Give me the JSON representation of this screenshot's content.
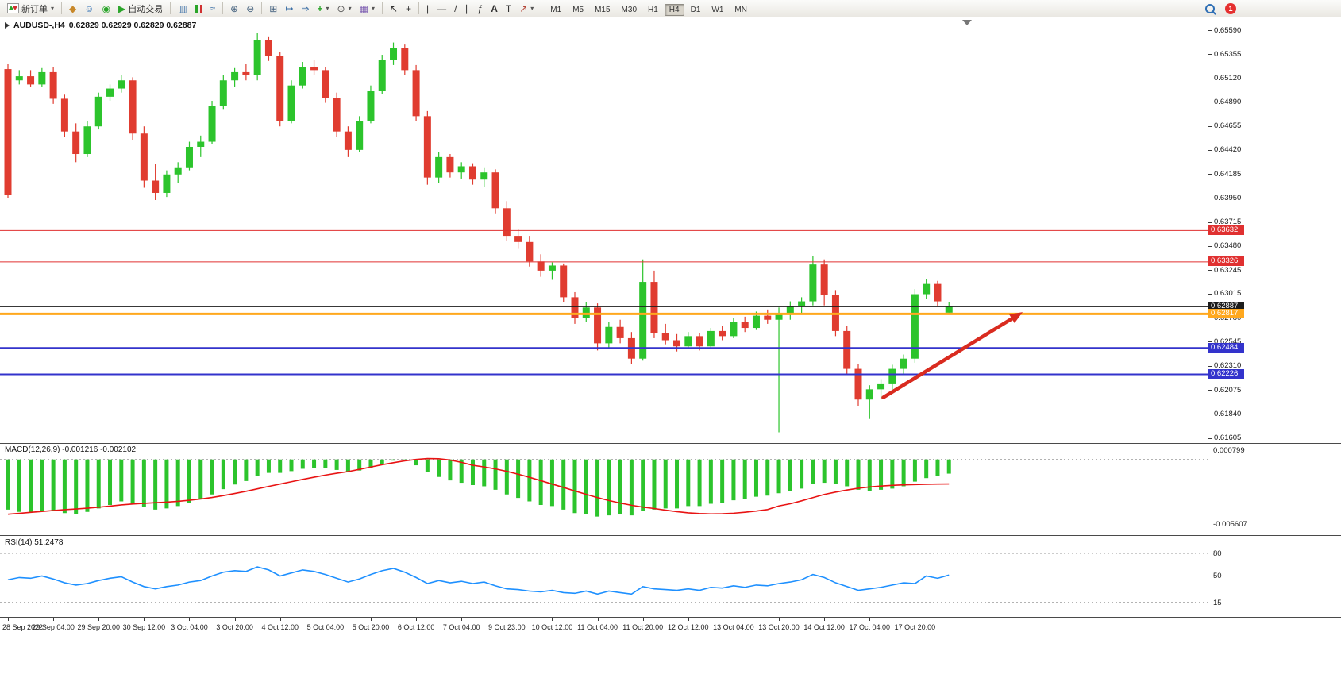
{
  "toolbar": {
    "new_order_label": "新订单",
    "autotrading_label": "自动交易",
    "timeframes": [
      "M1",
      "M5",
      "M15",
      "M30",
      "H1",
      "H4",
      "D1",
      "W1",
      "MN"
    ],
    "active_timeframe": "H4",
    "notification_count": "1"
  },
  "chart": {
    "symbol_title": "AUDUSD-,H4",
    "ohlc_text": "0.62829 0.62929 0.62829 0.62887",
    "price_axis": [
      "0.65590",
      "0.65355",
      "0.65120",
      "0.64890",
      "0.64655",
      "0.64420",
      "0.64185",
      "0.63950",
      "0.63715",
      "0.63480",
      "0.63245",
      "0.63015",
      "0.62780",
      "0.62545",
      "0.62310",
      "0.62075",
      "0.61840",
      "0.61605"
    ],
    "time_axis": [
      "28 Sep 2022",
      "29 Sep 04:00",
      "29 Sep 20:00",
      "30 Sep 12:00",
      "3 Oct 04:00",
      "3 Oct 20:00",
      "4 Oct 12:00",
      "5 Oct 04:00",
      "5 Oct 20:00",
      "6 Oct 12:00",
      "7 Oct 04:00",
      "9 Oct 23:00",
      "10 Oct 12:00",
      "11 Oct 04:00",
      "11 Oct 20:00",
      "12 Oct 12:00",
      "13 Oct 04:00",
      "13 Oct 20:00",
      "14 Oct 12:00",
      "17 Oct 04:00",
      "17 Oct 20:00"
    ],
    "hlines": [
      {
        "label": "0.63632",
        "value": 0.63632,
        "color": "#e03030",
        "width": 1
      },
      {
        "label": "0.63326",
        "value": 0.63326,
        "color": "#e03030",
        "width": 1
      },
      {
        "label": "0.62887",
        "value": 0.62887,
        "color": "#1c1c1c",
        "width": 1
      },
      {
        "label": "0.62817",
        "value": 0.62817,
        "color": "#ffa81e",
        "width": 3
      },
      {
        "label": "0.62484",
        "value": 0.62484,
        "color": "#3333cc",
        "width": 2
      },
      {
        "label": "0.62226",
        "value": 0.62226,
        "color": "#3333cc",
        "width": 2
      }
    ]
  },
  "colors": {
    "up": "#2cc42c",
    "down": "#e03c30",
    "macd_hist": "#2cc42c",
    "macd_signal": "#e81313",
    "rsi_line": "#1E90FF",
    "level": "#9a9a9a",
    "arrow": "#d92b1f",
    "scale_text": "#1a1a1a"
  },
  "chart_data": {
    "type": "candlestick",
    "symbol": "AUDUSD-",
    "period": "H4",
    "current_bar": {
      "open": 0.62829,
      "high": 0.62929,
      "low": 0.62829,
      "close": 0.62887
    },
    "price_range": {
      "top": 0.65715,
      "bottom": 0.61555
    },
    "candles": [
      [
        0.6521,
        0.6526,
        0.6395,
        0.6398
      ],
      [
        0.651,
        0.652,
        0.6506,
        0.6514
      ],
      [
        0.6514,
        0.652,
        0.6504,
        0.6506
      ],
      [
        0.6506,
        0.6522,
        0.6504,
        0.6518
      ],
      [
        0.6518,
        0.6523,
        0.6487,
        0.6492
      ],
      [
        0.6492,
        0.6496,
        0.6455,
        0.646
      ],
      [
        0.646,
        0.6468,
        0.643,
        0.6438
      ],
      [
        0.6438,
        0.647,
        0.6435,
        0.6465
      ],
      [
        0.6465,
        0.6498,
        0.6462,
        0.6494
      ],
      [
        0.6494,
        0.6506,
        0.649,
        0.6502
      ],
      [
        0.6502,
        0.6515,
        0.6498,
        0.651
      ],
      [
        0.651,
        0.6513,
        0.6452,
        0.6458
      ],
      [
        0.6458,
        0.6465,
        0.6405,
        0.6412
      ],
      [
        0.6412,
        0.6428,
        0.6393,
        0.64
      ],
      [
        0.64,
        0.6422,
        0.6396,
        0.6418
      ],
      [
        0.6418,
        0.643,
        0.641,
        0.6425
      ],
      [
        0.6425,
        0.645,
        0.6422,
        0.6445
      ],
      [
        0.6445,
        0.6456,
        0.6435,
        0.645
      ],
      [
        0.645,
        0.649,
        0.6448,
        0.6485
      ],
      [
        0.6485,
        0.6515,
        0.6482,
        0.651
      ],
      [
        0.651,
        0.6522,
        0.6504,
        0.6518
      ],
      [
        0.6518,
        0.6526,
        0.651,
        0.6515
      ],
      [
        0.6515,
        0.6556,
        0.651,
        0.6549
      ],
      [
        0.6549,
        0.6553,
        0.6529,
        0.6534
      ],
      [
        0.6534,
        0.6538,
        0.6465,
        0.647
      ],
      [
        0.647,
        0.651,
        0.6468,
        0.6505
      ],
      [
        0.6505,
        0.6528,
        0.6502,
        0.6523
      ],
      [
        0.6523,
        0.653,
        0.6515,
        0.652
      ],
      [
        0.652,
        0.6523,
        0.6488,
        0.6493
      ],
      [
        0.6493,
        0.6498,
        0.6455,
        0.646
      ],
      [
        0.646,
        0.6465,
        0.6435,
        0.6442
      ],
      [
        0.6442,
        0.6475,
        0.644,
        0.647
      ],
      [
        0.647,
        0.6505,
        0.6468,
        0.65
      ],
      [
        0.65,
        0.6535,
        0.6497,
        0.653
      ],
      [
        0.653,
        0.6547,
        0.6525,
        0.6542
      ],
      [
        0.6542,
        0.6545,
        0.6515,
        0.652
      ],
      [
        0.652,
        0.6525,
        0.647,
        0.6475
      ],
      [
        0.6475,
        0.648,
        0.6408,
        0.6415
      ],
      [
        0.6415,
        0.644,
        0.641,
        0.6435
      ],
      [
        0.6435,
        0.6438,
        0.6415,
        0.642
      ],
      [
        0.642,
        0.643,
        0.6414,
        0.6426
      ],
      [
        0.6426,
        0.6429,
        0.6408,
        0.6413
      ],
      [
        0.6413,
        0.6425,
        0.6406,
        0.642
      ],
      [
        0.642,
        0.6423,
        0.638,
        0.6385
      ],
      [
        0.6385,
        0.6392,
        0.6353,
        0.6358
      ],
      [
        0.6358,
        0.6365,
        0.6346,
        0.6352
      ],
      [
        0.6352,
        0.6358,
        0.6328,
        0.6333
      ],
      [
        0.6333,
        0.634,
        0.6318,
        0.6324
      ],
      [
        0.6324,
        0.6332,
        0.6315,
        0.6329
      ],
      [
        0.6329,
        0.6331,
        0.6293,
        0.6298
      ],
      [
        0.6298,
        0.6303,
        0.6272,
        0.6278
      ],
      [
        0.6278,
        0.6293,
        0.6274,
        0.6288
      ],
      [
        0.6288,
        0.6292,
        0.6246,
        0.6253
      ],
      [
        0.6253,
        0.6274,
        0.6249,
        0.6269
      ],
      [
        0.6269,
        0.6276,
        0.6253,
        0.6258
      ],
      [
        0.6258,
        0.6264,
        0.6233,
        0.6238
      ],
      [
        0.6238,
        0.6335,
        0.6236,
        0.6313
      ],
      [
        0.6313,
        0.6324,
        0.6258,
        0.6263
      ],
      [
        0.6263,
        0.6272,
        0.6252,
        0.6256
      ],
      [
        0.6256,
        0.6262,
        0.6245,
        0.625
      ],
      [
        0.625,
        0.6264,
        0.6248,
        0.626
      ],
      [
        0.626,
        0.6263,
        0.6246,
        0.625
      ],
      [
        0.625,
        0.6268,
        0.6248,
        0.6265
      ],
      [
        0.6265,
        0.627,
        0.6256,
        0.626
      ],
      [
        0.626,
        0.6278,
        0.6258,
        0.6274
      ],
      [
        0.6274,
        0.6279,
        0.6264,
        0.6268
      ],
      [
        0.6268,
        0.6284,
        0.6266,
        0.628
      ],
      [
        0.628,
        0.6286,
        0.6272,
        0.6276
      ],
      [
        0.6276,
        0.6288,
        0.6166,
        0.6282
      ],
      [
        0.6282,
        0.6294,
        0.6276,
        0.6289
      ],
      [
        0.6289,
        0.6298,
        0.6282,
        0.6294
      ],
      [
        0.6294,
        0.6338,
        0.629,
        0.633
      ],
      [
        0.633,
        0.6335,
        0.629,
        0.63
      ],
      [
        0.63,
        0.6305,
        0.626,
        0.6265
      ],
      [
        0.6265,
        0.627,
        0.6223,
        0.6228
      ],
      [
        0.6228,
        0.6233,
        0.6192,
        0.6198
      ],
      [
        0.6198,
        0.6212,
        0.6179,
        0.6208
      ],
      [
        0.6208,
        0.6218,
        0.6198,
        0.6213
      ],
      [
        0.6213,
        0.6232,
        0.6208,
        0.6228
      ],
      [
        0.6228,
        0.6242,
        0.6223,
        0.6238
      ],
      [
        0.6238,
        0.6306,
        0.6234,
        0.6301
      ],
      [
        0.6301,
        0.6316,
        0.6296,
        0.6311
      ],
      [
        0.6311,
        0.6314,
        0.6289,
        0.6294
      ],
      [
        0.62829,
        0.62929,
        0.62829,
        0.62887
      ]
    ],
    "indicators": {
      "macd": {
        "name": "MACD(12,26,9)",
        "macd_value": "-0.001216",
        "signal_value": "-0.002102",
        "axis_labels": [
          "0.000799",
          "-0.005607"
        ],
        "range": {
          "top": 0.000799,
          "bottom": -0.005607
        },
        "histogram": [
          -0.0043,
          -0.0045,
          -0.00455,
          -0.0044,
          -0.00445,
          -0.0046,
          -0.0047,
          -0.0045,
          -0.0042,
          -0.0039,
          -0.0036,
          -0.0038,
          -0.0041,
          -0.0043,
          -0.0042,
          -0.004,
          -0.0037,
          -0.0034,
          -0.003,
          -0.00255,
          -0.00215,
          -0.00185,
          -0.0014,
          -0.00115,
          -0.00115,
          -0.001,
          -0.0008,
          -0.0007,
          -0.00075,
          -0.0009,
          -0.00105,
          -0.00095,
          -0.0007,
          -0.0004,
          -0.0001,
          -0.0001,
          -0.0005,
          -0.0011,
          -0.0015,
          -0.0018,
          -0.002,
          -0.0022,
          -0.0023,
          -0.0026,
          -0.003,
          -0.0033,
          -0.0036,
          -0.0039,
          -0.004,
          -0.0043,
          -0.0046,
          -0.0047,
          -0.0049,
          -0.0048,
          -0.0047,
          -0.0048,
          -0.0044,
          -0.0043,
          -0.0042,
          -0.0042,
          -0.004,
          -0.004,
          -0.0038,
          -0.0037,
          -0.0035,
          -0.0034,
          -0.0032,
          -0.0031,
          -0.0029,
          -0.0027,
          -0.0025,
          -0.0021,
          -0.002,
          -0.0021,
          -0.0023,
          -0.0026,
          -0.0027,
          -0.0026,
          -0.0025,
          -0.0023,
          -0.0019,
          -0.0016,
          -0.0014,
          -0.001216
        ],
        "signal": [
          -0.0047,
          -0.00462,
          -0.00454,
          -0.00446,
          -0.00438,
          -0.00431,
          -0.00425,
          -0.00418,
          -0.0041,
          -0.004,
          -0.0039,
          -0.00382,
          -0.00376,
          -0.00371,
          -0.00366,
          -0.00359,
          -0.0035,
          -0.00339,
          -0.00326,
          -0.0031,
          -0.00292,
          -0.00273,
          -0.00252,
          -0.00231,
          -0.00211,
          -0.00191,
          -0.00171,
          -0.00152,
          -0.00134,
          -0.00118,
          -0.00104,
          -0.00085,
          -0.00065,
          -0.00045,
          -0.00028,
          -0.00012,
          0.0,
          8e-05,
          6e-05,
          -5e-05,
          -0.00025,
          -0.0005,
          -0.00064,
          -0.00081,
          -0.00102,
          -0.00126,
          -0.00153,
          -0.00182,
          -0.00211,
          -0.0024,
          -0.0027,
          -0.00299,
          -0.00327,
          -0.00352,
          -0.00374,
          -0.00393,
          -0.00409,
          -0.00421,
          -0.00435,
          -0.00448,
          -0.00458,
          -0.00464,
          -0.00467,
          -0.00466,
          -0.00461,
          -0.00453,
          -0.00443,
          -0.0043,
          -0.00399,
          -0.0038,
          -0.00355,
          -0.00327,
          -0.003,
          -0.0028,
          -0.00262,
          -0.00247,
          -0.00236,
          -0.00228,
          -0.00222,
          -0.00218,
          -0.00215,
          -0.00213,
          -0.00211,
          -0.002102
        ]
      },
      "rsi": {
        "name": "RSI(14)",
        "value": "51.2478",
        "levels": [
          80,
          50,
          15
        ],
        "level_labels": [
          "80",
          "50",
          "15"
        ],
        "range": {
          "top": 100,
          "bottom": 0
        },
        "series": [
          45,
          48,
          47,
          50,
          46,
          41,
          38,
          40,
          44,
          47,
          49,
          42,
          36,
          33,
          36,
          38,
          42,
          44,
          50,
          55,
          57,
          56,
          62,
          58,
          50,
          54,
          58,
          56,
          52,
          47,
          42,
          46,
          52,
          57,
          60,
          55,
          48,
          40,
          44,
          41,
          43,
          40,
          42,
          37,
          33,
          32,
          30,
          29,
          31,
          28,
          27,
          30,
          26,
          30,
          28,
          26,
          36,
          33,
          32,
          31,
          33,
          31,
          35,
          34,
          37,
          35,
          38,
          37,
          40,
          42,
          45,
          52,
          48,
          41,
          36,
          31,
          33,
          35,
          38,
          41,
          40,
          50,
          47,
          51.25
        ]
      }
    },
    "annotations": {
      "trend_arrow": {
        "from_bar": 77.2,
        "from_price": 0.62,
        "to_bar": 89.5,
        "to_price": 0.62835
      }
    }
  }
}
